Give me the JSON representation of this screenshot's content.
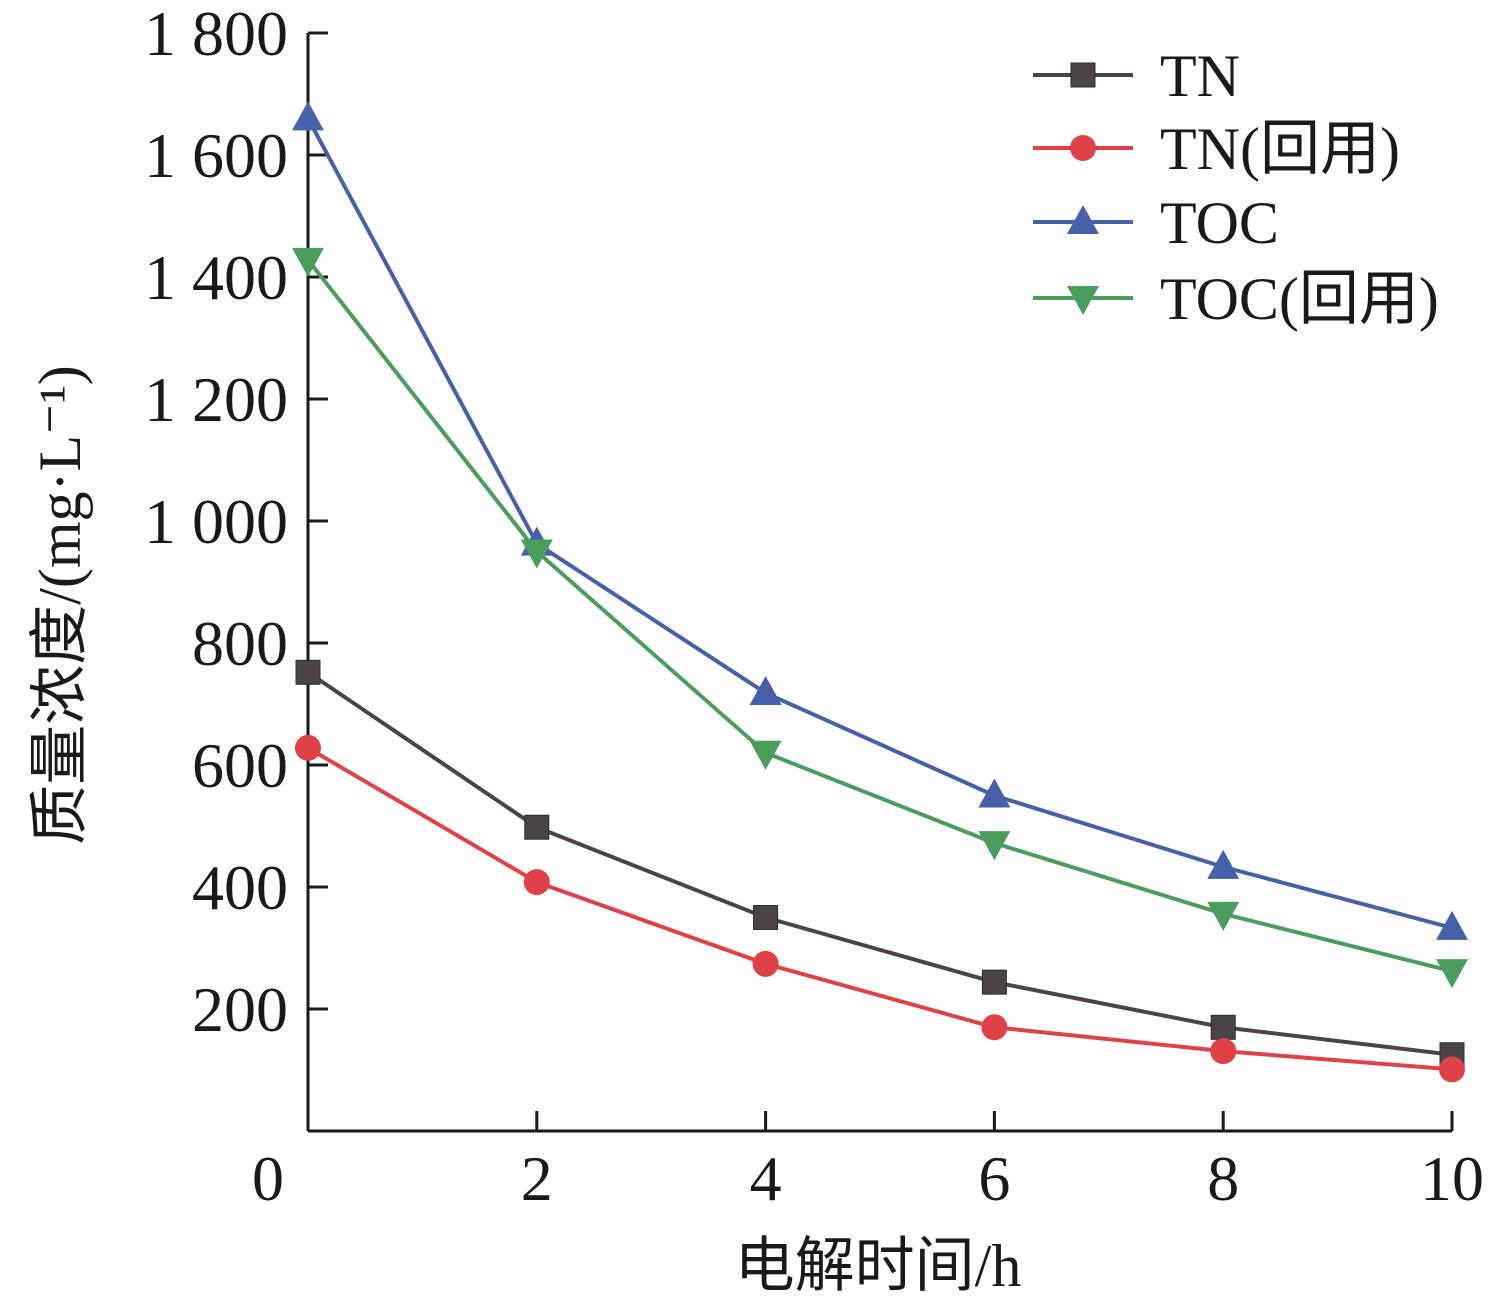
{
  "chart_data": {
    "type": "line",
    "title": "",
    "xlabel": "电解时间/h",
    "ylabel": "质量浓度/(mg·L⁻¹)",
    "x": [
      0,
      2,
      4,
      6,
      8,
      10
    ],
    "xlim": [
      0,
      10
    ],
    "ylim": [
      0,
      1800
    ],
    "x_ticks": [
      0,
      2,
      4,
      6,
      8,
      10
    ],
    "x_tick_labels": [
      "0",
      "2",
      "4",
      "6",
      "8",
      "10"
    ],
    "y_ticks": [
      200,
      400,
      600,
      800,
      1000,
      1200,
      1400,
      1600,
      1800
    ],
    "y_tick_labels": [
      "200",
      "400",
      "600",
      "800",
      "1 000",
      "1 200",
      "1 400",
      "1 600",
      "1 800"
    ],
    "legend_position": "top-right",
    "grid": false,
    "series": [
      {
        "name": "TN",
        "marker": "square",
        "color": "#4a4446",
        "values": [
          752,
          498,
          350,
          244,
          170,
          125
        ]
      },
      {
        "name": "TN(回用)",
        "marker": "circle",
        "color": "#e04146",
        "values": [
          628,
          408,
          274,
          170,
          131,
          101
        ]
      },
      {
        "name": "TOC",
        "marker": "triangle-up",
        "color": "#4661aa",
        "values": [
          1660,
          963,
          718,
          550,
          433,
          333
        ]
      },
      {
        "name": "TOC(回用)",
        "marker": "triangle-down",
        "color": "#4a9d5d",
        "values": [
          1428,
          950,
          620,
          472,
          356,
          262
        ]
      }
    ]
  }
}
